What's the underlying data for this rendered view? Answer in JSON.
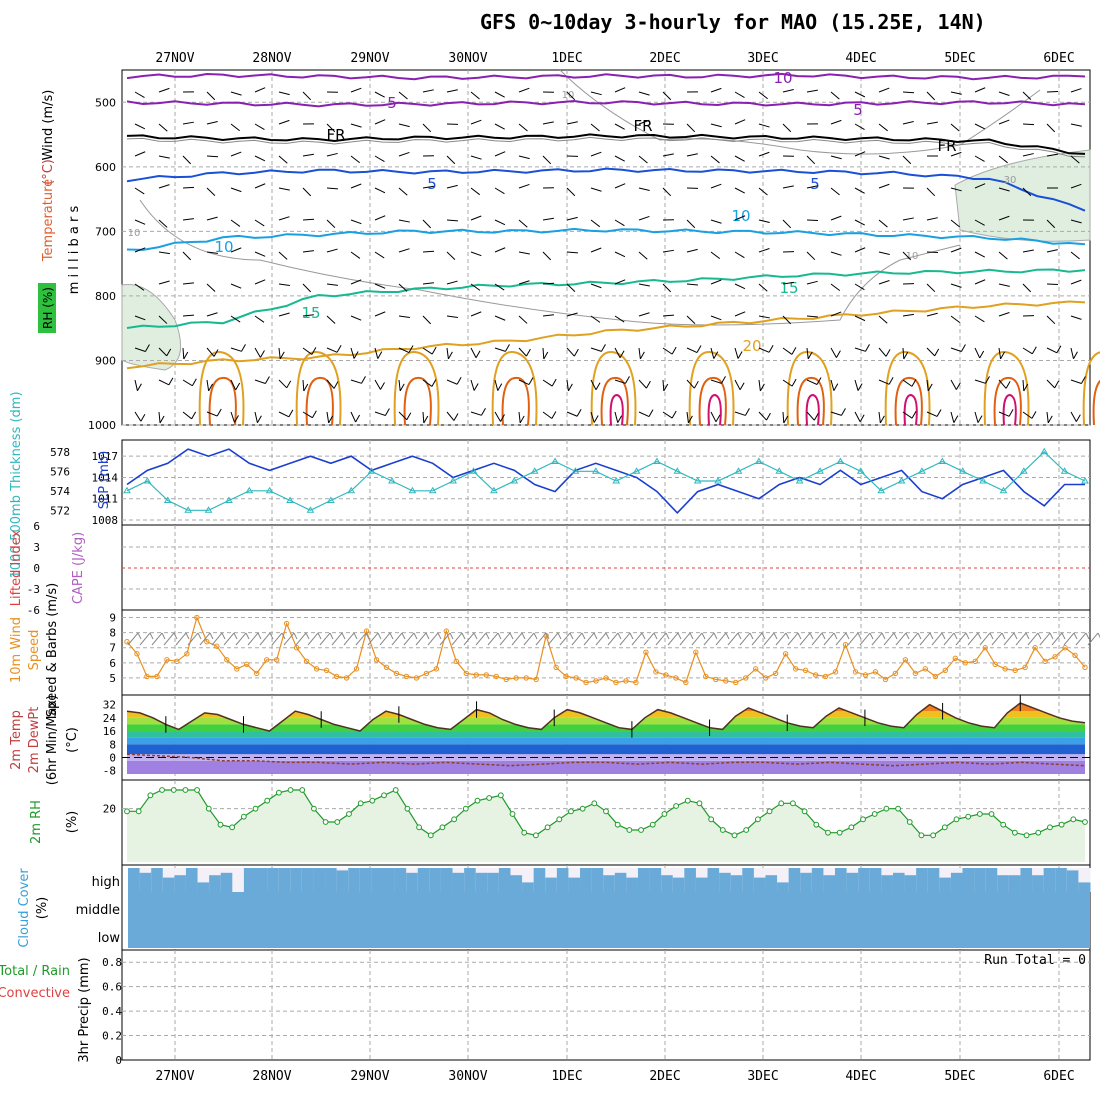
{
  "title": "GFS 0~10day 3-hourly for MAO (15.25E, 14N)",
  "chart_data": [
    {
      "type": "line",
      "panel": "upper-air",
      "x_dates": [
        "27NOV",
        "28NOV",
        "29NOV",
        "30NOV",
        "1DEC",
        "2DEC",
        "3DEC",
        "4DEC",
        "5DEC",
        "6DEC"
      ],
      "y_axis": {
        "label": "m i l l i b a r s",
        "ticks": [
          500,
          600,
          700,
          800,
          900,
          1000
        ],
        "ylim": [
          450,
          1000
        ]
      },
      "side_labels": {
        "wind": "Wind (m/s)",
        "temperature": "Temperature (°C)",
        "rh": "RH (%)"
      },
      "contours": [
        {
          "label": "10",
          "color": "#8a20b0",
          "level_mb": [
            460,
            458,
            460,
            462,
            461,
            459,
            460,
            458,
            461,
            462,
            460
          ]
        },
        {
          "label": "5",
          "color": "#8a20b0",
          "level_mb": [
            500,
            502,
            504,
            503,
            501,
            500,
            502,
            503,
            501,
            500,
            503
          ]
        },
        {
          "label": "FR",
          "color": "#000000",
          "level_mb": [
            553,
            556,
            558,
            555,
            554,
            552,
            553,
            555,
            557,
            560,
            580
          ]
        },
        {
          "label": "5",
          "color": "#1a50d8",
          "level_mb": [
            620,
            610,
            606,
            608,
            607,
            605,
            606,
            607,
            610,
            618,
            668
          ]
        },
        {
          "label": "10",
          "color": "#1aa0e0",
          "level_mb": [
            730,
            710,
            705,
            700,
            700,
            698,
            700,
            702,
            706,
            710,
            720
          ]
        },
        {
          "label": "15",
          "color": "#18b890",
          "level_mb": [
            850,
            840,
            800,
            790,
            783,
            780,
            775,
            768,
            764,
            762,
            760
          ]
        },
        {
          "label": "20",
          "color": "#e0a020",
          "level_mb": [
            910,
            900,
            895,
            880,
            870,
            855,
            845,
            835,
            825,
            815,
            810
          ]
        }
      ],
      "contour_labels": [
        "10",
        "5",
        "FR",
        "FR",
        "FR",
        "5",
        "5",
        "10",
        "10",
        "15",
        "15",
        "20",
        "10",
        "10",
        "10",
        "30"
      ]
    },
    {
      "type": "line",
      "panel": "slp-thickness",
      "y_left": {
        "label": "1000-500mb Thickness (dm)",
        "ticks": [
          572,
          574,
          576,
          578
        ]
      },
      "y_right": {
        "label": "SLP (mb)",
        "ticks": [
          1008,
          1011,
          1014,
          1017
        ]
      },
      "series": [
        {
          "name": "SLP (mb)",
          "color": "#1a3fd0",
          "values": [
            1013,
            1015,
            1016,
            1018,
            1017,
            1018,
            1016,
            1015,
            1016,
            1017,
            1016,
            1017,
            1015,
            1016,
            1017,
            1016,
            1014,
            1015,
            1016,
            1015,
            1013,
            1012,
            1015,
            1016,
            1015,
            1014,
            1012,
            1009,
            1012,
            1013,
            1012,
            1011,
            1013,
            1014,
            1013,
            1015,
            1013,
            1014,
            1015,
            1012,
            1011,
            1013,
            1014,
            1015,
            1012,
            1010,
            1013,
            1013
          ]
        },
        {
          "name": "1000-500mb Thickness (dm)",
          "color": "#30b8c0",
          "values": [
            574,
            575,
            573,
            572,
            572,
            573,
            574,
            574,
            573,
            572,
            573,
            574,
            576,
            575,
            574,
            574,
            575,
            576,
            574,
            575,
            576,
            577,
            576,
            576,
            575,
            576,
            577,
            576,
            575,
            575,
            576,
            577,
            576,
            575,
            576,
            577,
            576,
            574,
            575,
            576,
            577,
            576,
            575,
            574,
            576,
            578,
            576,
            575
          ]
        }
      ]
    },
    {
      "type": "line",
      "panel": "cape-li",
      "y_left": {
        "label": "Lifted Index",
        "ticks": [
          6,
          3,
          0,
          -3,
          -6
        ]
      },
      "y_right": {
        "label": "CAPE (J/kg)"
      },
      "series": [
        {
          "name": "Lifted Index",
          "values": []
        }
      ]
    },
    {
      "type": "line",
      "panel": "10m-wind",
      "y_left": {
        "label": "10m Wind",
        "ticks": [
          5,
          6,
          7,
          8,
          9
        ]
      },
      "y_right": {
        "label": "Speed & Barbs (m/s)"
      },
      "series": [
        {
          "name": "10m Wind Speed (m/s)",
          "color": "#e89020",
          "values": [
            7.4,
            6.6,
            5.1,
            5.1,
            6.2,
            6.1,
            6.6,
            9.0,
            7.4,
            7.1,
            6.2,
            5.6,
            5.9,
            5.3,
            6.2,
            6.2,
            8.6,
            7.0,
            6.1,
            5.6,
            5.5,
            5.1,
            5.0,
            5.6,
            8.1,
            6.2,
            5.7,
            5.3,
            5.1,
            5.0,
            5.3,
            5.6,
            8.1,
            6.1,
            5.3,
            5.2,
            5.2,
            5.1,
            4.9,
            5.0,
            5.0,
            4.9,
            7.8,
            5.7,
            5.1,
            5.0,
            4.7,
            4.8,
            5.0,
            4.7,
            4.8,
            4.7,
            6.7,
            5.4,
            5.2,
            5.0,
            4.7,
            6.7,
            5.1,
            4.9,
            4.8,
            4.7,
            5.0,
            5.6,
            5.0,
            5.3,
            6.6,
            5.6,
            5.5,
            5.2,
            5.1,
            5.4,
            7.2,
            5.4,
            5.2,
            5.4,
            4.9,
            5.3,
            6.2,
            5.3,
            5.6,
            5.1,
            5.5,
            6.3,
            6.0,
            6.1,
            7.0,
            5.9,
            5.6,
            5.5,
            5.7,
            7.0,
            6.1,
            6.4,
            7.0,
            6.5,
            5.7
          ]
        }
      ]
    },
    {
      "type": "area",
      "panel": "2m-temp",
      "y_left": {
        "label": "2m Temp",
        "ticks": [
          32,
          24,
          16,
          8,
          0,
          -8
        ]
      },
      "y_right": {
        "label": "2m DewPt (6hr Min/Max) (°C)"
      },
      "series": [
        {
          "name": "2m Temp",
          "values": [
            28,
            27,
            24,
            20,
            17,
            22,
            27,
            26,
            23,
            20,
            18,
            16,
            22,
            28,
            26,
            23,
            20,
            18,
            16,
            23,
            28,
            26,
            23,
            20,
            18,
            17,
            23,
            29,
            27,
            23,
            20,
            18,
            17,
            24,
            29,
            27,
            24,
            21,
            18,
            17,
            24,
            29,
            27,
            24,
            21,
            18,
            17,
            25,
            30,
            27,
            24,
            21,
            19,
            18,
            25,
            30,
            27,
            24,
            21,
            19,
            18,
            26,
            32,
            28,
            24,
            21,
            19,
            18,
            27,
            33,
            30,
            27,
            24,
            22,
            21
          ]
        },
        {
          "name": "2m DewPt",
          "values": [
            2,
            1,
            0,
            -2,
            -2,
            -3,
            -3,
            -4,
            -3,
            -4,
            -3,
            -4,
            -5,
            -4,
            -3,
            -3,
            -4,
            -3,
            -4,
            -3,
            -3,
            -4,
            -3,
            -4,
            -5,
            -4,
            -3,
            -4,
            -3,
            -4,
            -5
          ]
        }
      ]
    },
    {
      "type": "area",
      "panel": "2m-rh",
      "y_left": {
        "label": "2m RH",
        "ticks": [
          20
        ]
      },
      "y_right": {
        "label": "(%)"
      },
      "series": [
        {
          "name": "2m RH (%)",
          "color": "#1f9a2a",
          "values": [
            19,
            19,
            25,
            27,
            27,
            27,
            27,
            20,
            14,
            13,
            17,
            20,
            23,
            26,
            27,
            27,
            20,
            15,
            15,
            18,
            22,
            23,
            25,
            27,
            20,
            13,
            10,
            13,
            16,
            20,
            23,
            24,
            25,
            18,
            11,
            10,
            13,
            16,
            19,
            20,
            22,
            19,
            14,
            12,
            12,
            14,
            18,
            21,
            23,
            22,
            16,
            12,
            10,
            12,
            16,
            19,
            22,
            22,
            19,
            14,
            11,
            11,
            13,
            16,
            18,
            20,
            20,
            15,
            10,
            10,
            13,
            16,
            17,
            18,
            18,
            14,
            11,
            10,
            11,
            13,
            14,
            16,
            15
          ]
        }
      ]
    },
    {
      "type": "bar",
      "panel": "cloud-cover",
      "y_left": {
        "label": "Cloud Cover (%)",
        "ticks": [
          "high",
          "middle",
          "low"
        ]
      },
      "layers": [
        "high",
        "middle",
        "low"
      ],
      "values_percent": {
        "high": [
          100,
          80,
          100,
          60,
          70,
          100,
          40,
          70,
          80,
          0,
          100,
          100,
          100,
          100,
          100,
          100,
          100,
          100,
          90,
          100,
          100,
          100,
          100,
          100,
          80,
          100,
          100,
          100,
          80,
          100,
          80,
          80,
          100,
          70,
          40,
          100,
          60,
          100,
          60,
          100,
          100,
          70,
          80,
          60,
          100,
          100,
          70,
          60,
          100,
          60,
          100,
          80,
          70,
          100,
          60,
          70,
          40,
          100,
          80,
          100,
          70,
          100,
          80,
          100,
          100,
          70,
          80,
          70,
          100,
          100,
          60,
          80,
          100,
          100,
          100,
          70,
          70,
          100,
          70,
          100,
          100,
          90,
          40
        ],
        "middle": [
          100
        ],
        "low": [
          100
        ]
      }
    },
    {
      "type": "bar",
      "panel": "precip",
      "y_left": {
        "label": "3hr Precip (mm)",
        "ticks": [
          0,
          0.2,
          0.4,
          0.6,
          0.8
        ]
      },
      "legend": [
        "Total / Rain",
        "Convective"
      ],
      "run_total": "Run Total = 0",
      "values": []
    }
  ]
}
